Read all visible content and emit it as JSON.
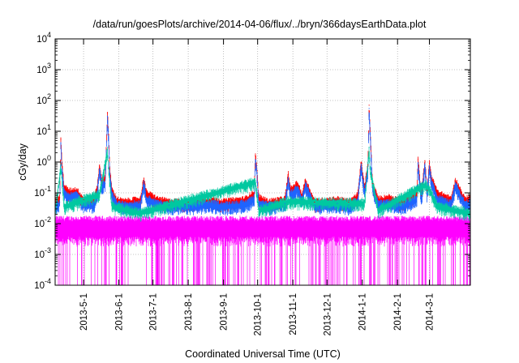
{
  "chart_data": {
    "type": "line",
    "title": "/data/run/goesPlots/archive/2014-04-06/flux/../bryn/366daysEarthData.plot",
    "xlabel": "Coordinated Universal Time (UTC)",
    "ylabel": "cGy/day",
    "yscale": "log",
    "ylim": [
      0.0001,
      10000
    ],
    "xlim": [
      "2013-04-06",
      "2014-04-06"
    ],
    "x_ticks": [
      "2013-5-1",
      "2013-6-1",
      "2013-7-1",
      "2013-8-1",
      "2013-9-1",
      "2013-10-1",
      "2013-11-1",
      "2013-12-1",
      "2014-1-1",
      "2014-2-1",
      "2014-3-1"
    ],
    "y_ticks": [
      {
        "value": 0.0001,
        "base": "10",
        "exp": "-4"
      },
      {
        "value": 0.001,
        "base": "10",
        "exp": "-3"
      },
      {
        "value": 0.01,
        "base": "10",
        "exp": "-2"
      },
      {
        "value": 0.1,
        "base": "10",
        "exp": "-1"
      },
      {
        "value": 1,
        "base": "10",
        "exp": "0"
      },
      {
        "value": 10,
        "base": "10",
        "exp": "1"
      },
      {
        "value": 100,
        "base": "10",
        "exp": "2"
      },
      {
        "value": 1000,
        "base": "10",
        "exp": "3"
      },
      {
        "value": 10000,
        "base": "10",
        "exp": "4"
      }
    ],
    "grid": true,
    "series": [
      {
        "color": "#ff0000",
        "x": [
          "2013-04-06",
          "2013-04-10",
          "2013-04-11",
          "2013-04-12",
          "2013-04-14",
          "2013-04-18",
          "2013-04-25",
          "2013-05-01",
          "2013-05-10",
          "2013-05-13",
          "2013-05-15",
          "2013-05-17",
          "2013-05-20",
          "2013-05-22",
          "2013-05-23",
          "2013-05-24",
          "2013-05-26",
          "2013-05-30",
          "2013-06-05",
          "2013-06-20",
          "2013-06-23",
          "2013-06-25",
          "2013-07-05",
          "2013-07-15",
          "2013-08-01",
          "2013-08-20",
          "2013-09-01",
          "2013-09-20",
          "2013-09-28",
          "2013-09-29",
          "2013-09-30",
          "2013-10-02",
          "2013-10-10",
          "2013-10-25",
          "2013-10-28",
          "2013-10-30",
          "2013-11-05",
          "2013-11-09",
          "2013-11-12",
          "2013-11-20",
          "2013-12-10",
          "2013-12-20",
          "2013-12-28",
          "2013-12-31",
          "2014-01-03",
          "2014-01-06",
          "2014-01-07",
          "2014-01-08",
          "2014-01-10",
          "2014-01-15",
          "2014-01-25",
          "2014-02-05",
          "2014-02-18",
          "2014-02-19",
          "2014-02-22",
          "2014-02-25",
          "2014-02-27",
          "2014-03-01",
          "2014-03-03",
          "2014-03-08",
          "2014-03-20",
          "2014-03-24",
          "2014-04-01",
          "2014-04-06"
        ],
        "values": [
          0.05,
          0.07,
          5.5,
          0.9,
          0.15,
          0.11,
          0.12,
          0.06,
          0.06,
          0.15,
          0.8,
          0.25,
          0.3,
          40,
          8,
          0.6,
          0.12,
          0.06,
          0.05,
          0.06,
          0.3,
          0.1,
          0.06,
          0.05,
          0.05,
          0.06,
          0.05,
          0.06,
          0.1,
          1.6,
          0.9,
          0.07,
          0.05,
          0.06,
          0.4,
          0.12,
          0.2,
          0.08,
          0.25,
          0.05,
          0.06,
          0.05,
          0.08,
          1.0,
          0.15,
          0.8,
          70,
          10,
          0.2,
          0.06,
          0.07,
          0.05,
          0.1,
          1.2,
          0.08,
          1.1,
          0.12,
          0.9,
          0.3,
          0.1,
          0.06,
          0.25,
          0.06,
          0.07
        ]
      },
      {
        "color": "#1e64ff",
        "x": [
          "2013-04-06",
          "2013-04-10",
          "2013-04-11",
          "2013-04-12",
          "2013-04-14",
          "2013-04-18",
          "2013-04-25",
          "2013-05-01",
          "2013-05-10",
          "2013-05-13",
          "2013-05-15",
          "2013-05-17",
          "2013-05-20",
          "2013-05-22",
          "2013-05-23",
          "2013-05-24",
          "2013-05-26",
          "2013-05-30",
          "2013-06-05",
          "2013-06-20",
          "2013-06-23",
          "2013-06-25",
          "2013-07-05",
          "2013-07-15",
          "2013-08-01",
          "2013-08-20",
          "2013-09-01",
          "2013-09-20",
          "2013-09-28",
          "2013-09-29",
          "2013-09-30",
          "2013-10-02",
          "2013-10-10",
          "2013-10-25",
          "2013-10-28",
          "2013-10-30",
          "2013-11-05",
          "2013-11-09",
          "2013-11-12",
          "2013-11-20",
          "2013-12-10",
          "2013-12-20",
          "2013-12-28",
          "2013-12-31",
          "2014-01-03",
          "2014-01-06",
          "2014-01-07",
          "2014-01-08",
          "2014-01-10",
          "2014-01-15",
          "2014-01-25",
          "2014-02-05",
          "2014-02-18",
          "2014-02-19",
          "2014-02-22",
          "2014-02-25",
          "2014-02-27",
          "2014-03-01",
          "2014-03-03",
          "2014-03-08",
          "2014-03-20",
          "2014-03-24",
          "2014-04-01",
          "2014-04-06"
        ],
        "values": [
          0.035,
          0.05,
          4,
          0.6,
          0.1,
          0.08,
          0.09,
          0.045,
          0.045,
          0.1,
          0.6,
          0.18,
          0.2,
          30,
          6,
          0.4,
          0.09,
          0.045,
          0.04,
          0.045,
          0.22,
          0.07,
          0.045,
          0.04,
          0.04,
          0.045,
          0.04,
          0.045,
          0.07,
          1.2,
          0.7,
          0.05,
          0.04,
          0.045,
          0.3,
          0.09,
          0.15,
          0.06,
          0.18,
          0.04,
          0.045,
          0.04,
          0.06,
          0.8,
          0.11,
          0.6,
          55,
          8,
          0.15,
          0.045,
          0.05,
          0.04,
          0.07,
          0.9,
          0.06,
          0.8,
          0.09,
          0.7,
          0.22,
          0.07,
          0.045,
          0.18,
          0.045,
          0.05
        ]
      },
      {
        "color": "#00c8a0",
        "x": [
          "2013-04-06",
          "2013-04-11",
          "2013-04-14",
          "2013-05-15",
          "2013-05-22",
          "2013-05-23",
          "2013-05-26",
          "2013-06-20",
          "2013-09-29",
          "2013-10-02",
          "2013-10-28",
          "2014-01-03",
          "2014-01-07",
          "2014-01-08",
          "2014-01-15",
          "2014-02-25",
          "2014-03-01",
          "2014-03-08",
          "2014-04-06"
        ],
        "values": [
          0.025,
          0.8,
          0.04,
          0.1,
          2.5,
          0.6,
          0.04,
          0.025,
          0.25,
          0.03,
          0.06,
          0.05,
          3,
          0.6,
          0.03,
          0.2,
          0.15,
          0.04,
          0.025
        ]
      },
      {
        "color": "#ff00ff",
        "x": [
          "2013-04-06",
          "2013-06-01",
          "2013-08-01",
          "2013-10-01",
          "2013-12-01",
          "2014-02-01",
          "2014-04-06"
        ],
        "values": [
          0.01,
          0.01,
          0.01,
          0.01,
          0.01,
          0.01,
          0.01
        ]
      }
    ]
  }
}
